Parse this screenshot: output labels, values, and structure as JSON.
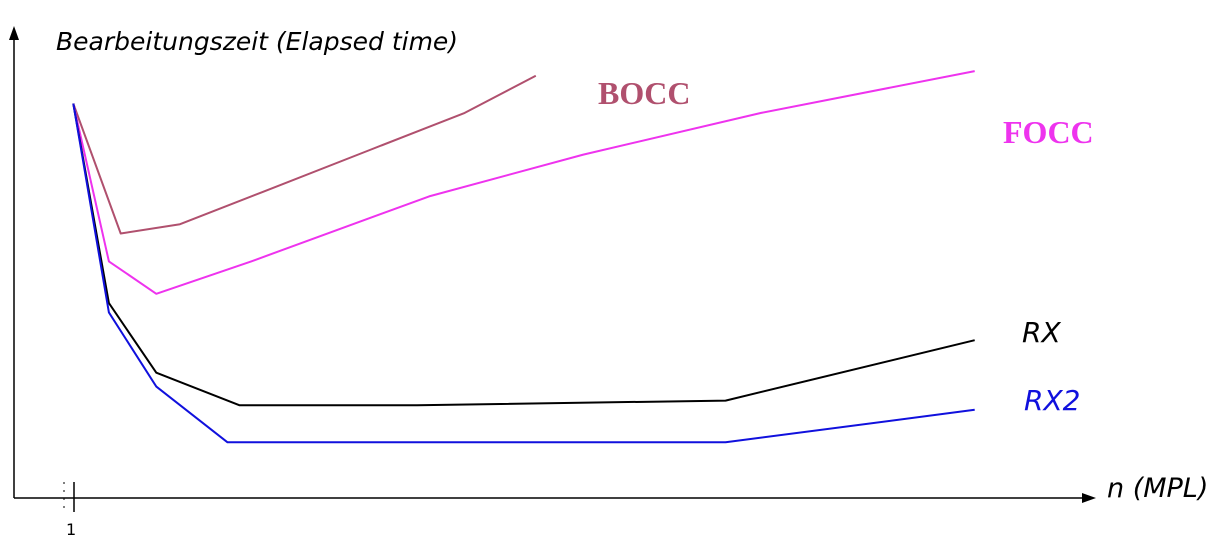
{
  "chart_data": {
    "type": "line",
    "ylabel": "Bearbeitungszeit (Elapsed time)",
    "xlabel": "n (MPL)",
    "x_tick_labels": [
      "1"
    ],
    "xlim": [
      0,
      100
    ],
    "ylim": [
      0,
      100
    ],
    "series": [
      {
        "name": "BOCC",
        "color": "#b0506e",
        "points": [
          [
            5,
            85
          ],
          [
            9,
            57
          ],
          [
            14,
            59
          ],
          [
            21,
            66
          ],
          [
            30,
            75
          ],
          [
            38,
            83
          ],
          [
            44,
            91
          ]
        ]
      },
      {
        "name": "FOCC",
        "color": "#ee33ee",
        "points": [
          [
            5,
            85
          ],
          [
            8,
            51
          ],
          [
            12,
            44
          ],
          [
            20,
            51
          ],
          [
            35,
            65
          ],
          [
            48,
            74
          ],
          [
            63,
            83
          ],
          [
            81,
            92
          ]
        ]
      },
      {
        "name": "RX",
        "color": "#000000",
        "points": [
          [
            5,
            85
          ],
          [
            8,
            42
          ],
          [
            12,
            27
          ],
          [
            19,
            20
          ],
          [
            34,
            20
          ],
          [
            60,
            21
          ],
          [
            81,
            34
          ]
        ]
      },
      {
        "name": "RX2",
        "color": "#1010dd",
        "points": [
          [
            5,
            85
          ],
          [
            8,
            40
          ],
          [
            12,
            24
          ],
          [
            18,
            12
          ],
          [
            33,
            12
          ],
          [
            60,
            12
          ],
          [
            81,
            19
          ]
        ]
      }
    ],
    "grid": false,
    "legend": "inline-right"
  }
}
